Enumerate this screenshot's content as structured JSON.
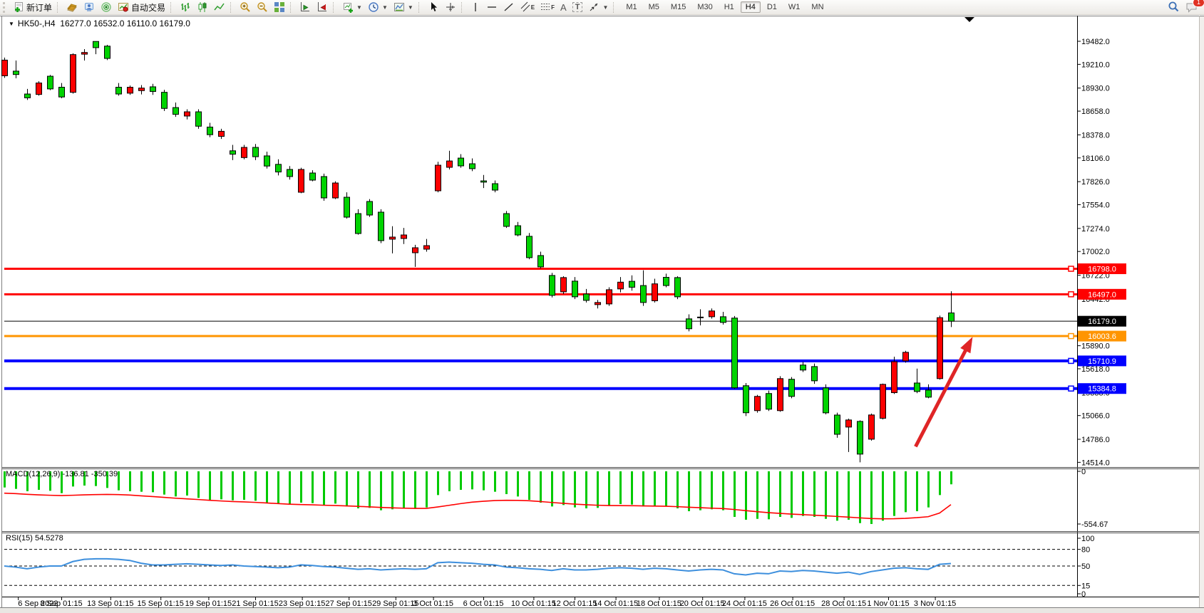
{
  "toolbar": {
    "new_order_label": "新订单",
    "autotrade_label": "自动交易",
    "glyphs": {
      "text_tool": "A",
      "label_tool": "T",
      "channel_tool": "E",
      "fib_tool": "F"
    },
    "timeframes": [
      "M1",
      "M5",
      "M15",
      "M30",
      "H1",
      "H4",
      "D1",
      "W1",
      "MN"
    ],
    "active_timeframe": "H4",
    "chat_badge": "1"
  },
  "chart": {
    "symbol_period": "HK50-,H4",
    "ohlc_display": "16277.0 16532.0 16110.0 16179.0"
  },
  "chart_data": [
    {
      "type": "candlestick",
      "symbol": "HK50-",
      "period": "H4",
      "open": "16277.0",
      "high": "16532.0",
      "low": "16110.0",
      "close": "16179.0",
      "up_color": "#fd0000",
      "down_color": "#00d300",
      "wick_color": "#000000",
      "ylim": [
        14430,
        19560
      ],
      "y_axis_ticks": [
        "19482.0",
        "19210.0",
        "18930.0",
        "18658.0",
        "18378.0",
        "18106.0",
        "17826.0",
        "17554.0",
        "17274.0",
        "17002.0",
        "16722.0",
        "16442.0",
        "15890.0",
        "15618.0",
        "15338.0",
        "15066.0",
        "14786.0",
        "14514.0"
      ],
      "x_axis_labels": [
        "6 Sep 2022",
        "8 Sep 01:15",
        "13 Sep 01:15",
        "15 Sep 01:15",
        "19 Sep 01:15",
        "21 Sep 01:15",
        "23 Sep 01:15",
        "27 Sep 01:15",
        "29 Sep 01:15",
        "3 Oct 01:15",
        "6 Oct 01:15",
        "10 Oct 01:15",
        "12 Oct 01:15",
        "14 Oct 01:15",
        "18 Oct 01:15",
        "20 Oct 01:15",
        "24 Oct 01:15",
        "26 Oct 01:15",
        "28 Oct 01:15",
        "1 Nov 01:15",
        "3 Nov 01:15"
      ],
      "x_axis_bar_positions": [
        1.2,
        5,
        9.3,
        13.7,
        17.9,
        22,
        26.1,
        30.2,
        34.3,
        37.6,
        42,
        46.4,
        50,
        53.6,
        57.4,
        61.2,
        64.9,
        69.1,
        73.6,
        77.5,
        81.6
      ],
      "hlines": [
        {
          "label": "16798.0",
          "price": 16798.0,
          "color": "#ff0000",
          "width": 3,
          "handle": true
        },
        {
          "label": "16497.0",
          "price": 16497.0,
          "color": "#ff0000",
          "width": 3,
          "handle": true
        },
        {
          "label": "16179.0",
          "price": 16179.0,
          "color": "#000000",
          "width": 1,
          "handle": false
        },
        {
          "label": "16003.6",
          "price": 16003.6,
          "color": "#ff9500",
          "width": 3,
          "handle": true
        },
        {
          "label": "15710.9",
          "price": 15710.9,
          "color": "#0000ff",
          "width": 4,
          "handle": true
        },
        {
          "label": "15384.8",
          "price": 15384.8,
          "color": "#0000ff",
          "width": 4,
          "handle": true
        }
      ],
      "annotation_arrow": {
        "from_bar": 79.9,
        "from_price": 14700,
        "to_bar": 84.9,
        "to_price": 15995,
        "color": "#df2526"
      },
      "candles": [
        [
          19075,
          19290,
          19050,
          19260
        ],
        [
          19130,
          19255,
          19045,
          19090
        ],
        [
          18860,
          18920,
          18790,
          18815
        ],
        [
          18855,
          19010,
          18840,
          18990
        ],
        [
          19070,
          19085,
          18905,
          18920
        ],
        [
          18940,
          18990,
          18810,
          18825
        ],
        [
          18880,
          19340,
          18865,
          19325
        ],
        [
          19330,
          19390,
          19255,
          19350
        ],
        [
          19480,
          19482,
          19330,
          19407
        ],
        [
          19425,
          19440,
          19260,
          19280
        ],
        [
          18940,
          18990,
          18840,
          18860
        ],
        [
          18870,
          18960,
          18850,
          18940
        ],
        [
          18900,
          18965,
          18855,
          18930
        ],
        [
          18945,
          18980,
          18850,
          18890
        ],
        [
          18880,
          18910,
          18660,
          18690
        ],
        [
          18700,
          18760,
          18590,
          18620
        ],
        [
          18600,
          18680,
          18560,
          18650
        ],
        [
          18650,
          18680,
          18450,
          18480
        ],
        [
          18470,
          18520,
          18350,
          18380
        ],
        [
          18360,
          18450,
          18330,
          18420
        ],
        [
          18190,
          18260,
          18080,
          18150
        ],
        [
          18110,
          18260,
          18090,
          18230
        ],
        [
          18230,
          18270,
          18080,
          18120
        ],
        [
          18130,
          18180,
          17980,
          18010
        ],
        [
          18030,
          18090,
          17900,
          17940
        ],
        [
          17970,
          18010,
          17850,
          17886
        ],
        [
          17701,
          17990,
          17690,
          17970
        ],
        [
          17928,
          17960,
          17830,
          17844
        ],
        [
          17886,
          17920,
          17600,
          17634
        ],
        [
          17634,
          17830,
          17620,
          17810
        ],
        [
          17642,
          17700,
          17390,
          17407
        ],
        [
          17449,
          17500,
          17200,
          17214
        ],
        [
          17592,
          17620,
          17410,
          17432
        ],
        [
          17466,
          17500,
          17100,
          17130
        ],
        [
          17147,
          17300,
          16980,
          17172
        ],
        [
          17155,
          17280,
          17090,
          17197
        ],
        [
          16987,
          17080,
          16820,
          17046
        ],
        [
          17029,
          17150,
          17000,
          17071
        ],
        [
          17718,
          18060,
          17700,
          18020
        ],
        [
          17995,
          18190,
          17970,
          18070
        ],
        [
          18104,
          18150,
          17990,
          18012
        ],
        [
          18037,
          18100,
          17950,
          17979
        ],
        [
          17835,
          17905,
          17750,
          17820
        ],
        [
          17802,
          17840,
          17700,
          17726
        ],
        [
          17449,
          17480,
          17280,
          17298
        ],
        [
          17306,
          17350,
          17180,
          17197
        ],
        [
          17181,
          17220,
          16910,
          16929
        ],
        [
          16954,
          17000,
          16800,
          16820
        ],
        [
          16719,
          16750,
          16460,
          16484
        ],
        [
          16526,
          16710,
          16500,
          16694
        ],
        [
          16652,
          16700,
          16440,
          16467
        ],
        [
          16500,
          16560,
          16400,
          16425
        ],
        [
          16375,
          16430,
          16330,
          16400
        ],
        [
          16383,
          16580,
          16360,
          16551
        ],
        [
          16560,
          16700,
          16520,
          16640
        ],
        [
          16650,
          16720,
          16540,
          16580
        ],
        [
          16600,
          16780,
          16360,
          16400
        ],
        [
          16420,
          16680,
          16400,
          16620
        ],
        [
          16697,
          16740,
          16580,
          16600
        ],
        [
          16694,
          16710,
          16440,
          16467
        ],
        [
          16207,
          16260,
          16060,
          16090
        ],
        [
          16228,
          16320,
          16130,
          16220
        ],
        [
          16232,
          16330,
          16210,
          16300
        ],
        [
          16232,
          16290,
          16140,
          16165
        ],
        [
          16216,
          16240,
          15380,
          15393
        ],
        [
          15418,
          15450,
          15060,
          15099
        ],
        [
          15124,
          15310,
          15100,
          15292
        ],
        [
          15326,
          15360,
          15120,
          15141
        ],
        [
          15124,
          15530,
          15110,
          15502
        ],
        [
          15494,
          15520,
          15270,
          15292
        ],
        [
          15662,
          15700,
          15580,
          15603
        ],
        [
          15644,
          15680,
          15440,
          15476
        ],
        [
          15392,
          15434,
          15080,
          15098
        ],
        [
          15072,
          15100,
          14804,
          14845
        ],
        [
          14930,
          15030,
          14636,
          15014
        ],
        [
          14997,
          15010,
          14514,
          14611
        ],
        [
          14787,
          15090,
          14770,
          15073
        ],
        [
          15034,
          15443,
          15020,
          15434
        ],
        [
          15336,
          15760,
          15320,
          15702
        ],
        [
          15711,
          15830,
          15690,
          15812
        ],
        [
          15450,
          15620,
          15330,
          15350
        ],
        [
          15367,
          15434,
          15270,
          15283
        ],
        [
          15502,
          16246,
          15490,
          16221
        ],
        [
          16277,
          16532,
          16110,
          16179
        ]
      ]
    },
    {
      "type": "macd",
      "label": "MACD(12,26,9)",
      "value_main": "-136.81",
      "value_signal": "-350.39",
      "hist_color": "#00ca00",
      "signal_color": "#ff0000",
      "y_ticks": [
        {
          "label": "0",
          "value": 0
        },
        {
          "label": "-554.67",
          "value": -554.67
        }
      ],
      "hist": [
        -170,
        -185,
        -210,
        -195,
        -205,
        -230,
        -160,
        -150,
        -155,
        -175,
        -200,
        -210,
        -215,
        -220,
        -245,
        -265,
        -255,
        -280,
        -300,
        -295,
        -305,
        -300,
        -310,
        -330,
        -345,
        -350,
        -330,
        -335,
        -355,
        -340,
        -370,
        -390,
        -385,
        -410,
        -400,
        -390,
        -395,
        -380,
        -250,
        -210,
        -195,
        -190,
        -200,
        -215,
        -240,
        -265,
        -300,
        -330,
        -370,
        -355,
        -380,
        -390,
        -385,
        -360,
        -345,
        -350,
        -370,
        -360,
        -365,
        -390,
        -420,
        -410,
        -400,
        -410,
        -480,
        -510,
        -500,
        -505,
        -480,
        -490,
        -470,
        -480,
        -500,
        -520,
        -510,
        -545,
        -554.67,
        -520,
        -470,
        -430,
        -420,
        -380,
        -250,
        -136.81
      ],
      "signal": [
        -230,
        -235,
        -242,
        -248,
        -252,
        -255,
        -252,
        -248,
        -245,
        -243,
        -245,
        -250,
        -258,
        -266,
        -274,
        -283,
        -290,
        -297,
        -305,
        -312,
        -318,
        -322,
        -327,
        -333,
        -340,
        -346,
        -350,
        -353,
        -357,
        -360,
        -364,
        -369,
        -374,
        -380,
        -385,
        -388,
        -390,
        -390,
        -375,
        -358,
        -340,
        -325,
        -315,
        -308,
        -305,
        -306,
        -310,
        -318,
        -328,
        -337,
        -345,
        -352,
        -357,
        -360,
        -361,
        -362,
        -364,
        -366,
        -368,
        -372,
        -378,
        -383,
        -388,
        -392,
        -402,
        -414,
        -425,
        -435,
        -443,
        -450,
        -456,
        -462,
        -468,
        -475,
        -482,
        -490,
        -497,
        -500,
        -499,
        -495,
        -488,
        -478,
        -440,
        -350.39
      ]
    },
    {
      "type": "rsi",
      "label": "RSI(15)",
      "value": "54.5278",
      "line_color": "#3d8fdd",
      "dashed_levels": [
        80,
        50,
        15
      ],
      "y_ticks": [
        {
          "label": "100",
          "value": 100
        },
        {
          "label": "80",
          "value": 80
        },
        {
          "label": "50",
          "value": 50
        },
        {
          "label": "15",
          "value": 15
        },
        {
          "label": "0",
          "value": 0
        }
      ],
      "values": [
        50,
        48,
        45,
        48,
        50,
        50,
        58,
        62,
        63,
        63,
        62,
        60,
        55,
        52,
        52,
        53,
        54,
        53,
        52,
        51,
        52,
        50,
        49,
        48,
        47,
        48,
        52,
        51,
        49,
        48,
        46,
        44,
        45,
        43,
        44,
        45,
        44,
        45,
        56,
        57,
        56,
        55,
        53,
        52,
        48,
        47,
        45,
        44,
        42,
        45,
        43,
        43,
        44,
        46,
        47,
        46,
        44,
        46,
        45,
        43,
        41,
        43,
        44,
        43,
        36,
        34,
        37,
        36,
        41,
        40,
        42,
        41,
        39,
        37,
        39,
        35,
        40,
        43,
        46,
        47,
        45,
        44,
        53,
        54.5278
      ]
    }
  ]
}
